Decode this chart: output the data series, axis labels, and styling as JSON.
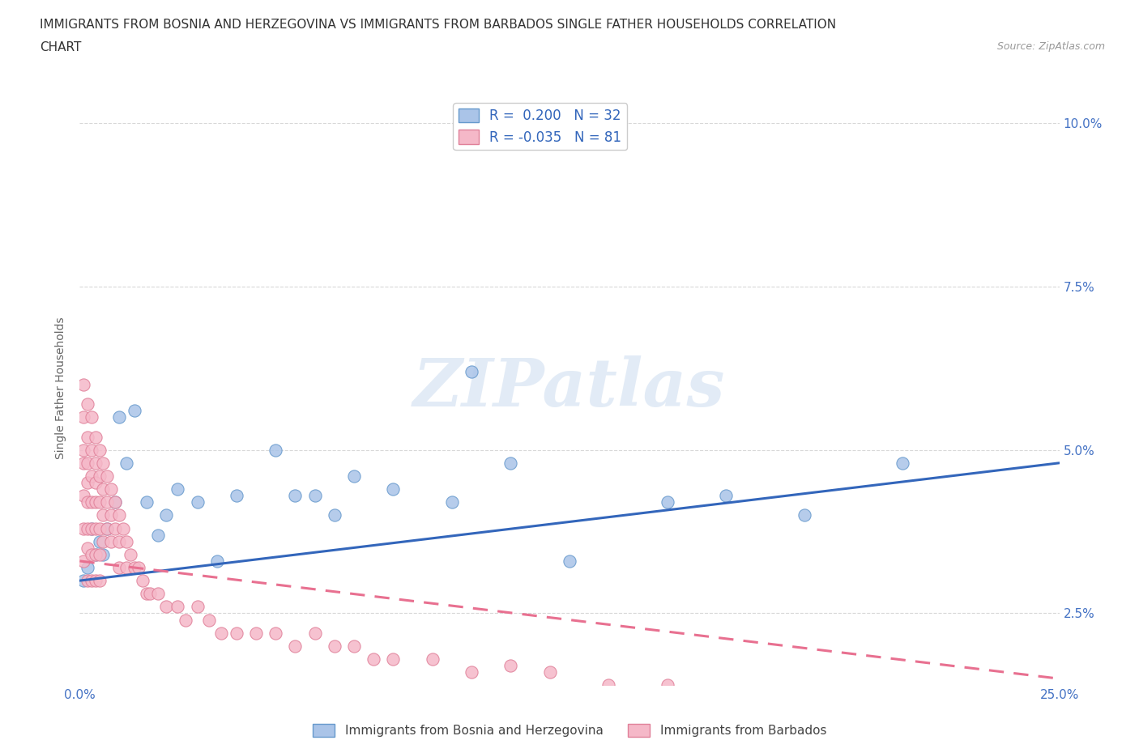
{
  "title_line1": "IMMIGRANTS FROM BOSNIA AND HERZEGOVINA VS IMMIGRANTS FROM BARBADOS SINGLE FATHER HOUSEHOLDS CORRELATION",
  "title_line2": "CHART",
  "source": "Source: ZipAtlas.com",
  "ylabel": "Single Father Households",
  "watermark": "ZIPatlas",
  "legend_entry1": "R =  0.200   N = 32",
  "legend_entry2": "R = -0.035   N = 81",
  "xlim": [
    0.0,
    0.25
  ],
  "ylim": [
    0.014,
    0.105
  ],
  "xticks": [
    0.0,
    0.05,
    0.1,
    0.15,
    0.2,
    0.25
  ],
  "yticks": [
    0.025,
    0.05,
    0.075,
    0.1
  ],
  "xticklabels": [
    "0.0%",
    "",
    "",
    "",
    "",
    "25.0%"
  ],
  "yticklabels_right": [
    "2.5%",
    "5.0%",
    "7.5%",
    "10.0%"
  ],
  "blue_scatter_x": [
    0.001,
    0.002,
    0.003,
    0.004,
    0.005,
    0.006,
    0.007,
    0.009,
    0.01,
    0.012,
    0.014,
    0.017,
    0.02,
    0.022,
    0.025,
    0.03,
    0.035,
    0.04,
    0.05,
    0.055,
    0.06,
    0.065,
    0.07,
    0.08,
    0.095,
    0.1,
    0.11,
    0.125,
    0.15,
    0.165,
    0.185,
    0.21
  ],
  "blue_scatter_y": [
    0.03,
    0.032,
    0.038,
    0.034,
    0.036,
    0.034,
    0.038,
    0.042,
    0.055,
    0.048,
    0.056,
    0.042,
    0.037,
    0.04,
    0.044,
    0.042,
    0.033,
    0.043,
    0.05,
    0.043,
    0.043,
    0.04,
    0.046,
    0.044,
    0.042,
    0.062,
    0.048,
    0.033,
    0.042,
    0.043,
    0.04,
    0.048
  ],
  "pink_scatter_x": [
    0.001,
    0.001,
    0.001,
    0.001,
    0.001,
    0.001,
    0.001,
    0.002,
    0.002,
    0.002,
    0.002,
    0.002,
    0.002,
    0.002,
    0.002,
    0.003,
    0.003,
    0.003,
    0.003,
    0.003,
    0.003,
    0.003,
    0.004,
    0.004,
    0.004,
    0.004,
    0.004,
    0.004,
    0.004,
    0.005,
    0.005,
    0.005,
    0.005,
    0.005,
    0.005,
    0.006,
    0.006,
    0.006,
    0.006,
    0.007,
    0.007,
    0.007,
    0.008,
    0.008,
    0.008,
    0.009,
    0.009,
    0.01,
    0.01,
    0.01,
    0.011,
    0.012,
    0.012,
    0.013,
    0.014,
    0.015,
    0.016,
    0.017,
    0.018,
    0.02,
    0.022,
    0.025,
    0.027,
    0.03,
    0.033,
    0.036,
    0.04,
    0.045,
    0.05,
    0.055,
    0.06,
    0.065,
    0.07,
    0.075,
    0.08,
    0.09,
    0.1,
    0.11,
    0.12,
    0.135,
    0.15
  ],
  "pink_scatter_y": [
    0.06,
    0.055,
    0.05,
    0.048,
    0.043,
    0.038,
    0.033,
    0.057,
    0.052,
    0.048,
    0.045,
    0.042,
    0.038,
    0.035,
    0.03,
    0.055,
    0.05,
    0.046,
    0.042,
    0.038,
    0.034,
    0.03,
    0.052,
    0.048,
    0.045,
    0.042,
    0.038,
    0.034,
    0.03,
    0.05,
    0.046,
    0.042,
    0.038,
    0.034,
    0.03,
    0.048,
    0.044,
    0.04,
    0.036,
    0.046,
    0.042,
    0.038,
    0.044,
    0.04,
    0.036,
    0.042,
    0.038,
    0.04,
    0.036,
    0.032,
    0.038,
    0.036,
    0.032,
    0.034,
    0.032,
    0.032,
    0.03,
    0.028,
    0.028,
    0.028,
    0.026,
    0.026,
    0.024,
    0.026,
    0.024,
    0.022,
    0.022,
    0.022,
    0.022,
    0.02,
    0.022,
    0.02,
    0.02,
    0.018,
    0.018,
    0.018,
    0.016,
    0.017,
    0.016,
    0.014,
    0.014
  ],
  "blue_line_x": [
    0.0,
    0.25
  ],
  "blue_line_y_start": 0.03,
  "blue_line_y_end": 0.048,
  "pink_line_x": [
    0.0,
    0.25
  ],
  "pink_line_y_start": 0.033,
  "pink_line_y_end": 0.015,
  "bg_color": "#ffffff",
  "grid_color": "#d8d8d8",
  "blue_scatter_color": "#aac4e8",
  "blue_scatter_edge": "#6699cc",
  "pink_scatter_color": "#f5b8c8",
  "pink_scatter_edge": "#e08099",
  "blue_line_color": "#3366bb",
  "pink_line_color": "#e87090",
  "axis_tick_color": "#4472c4",
  "axis_label_color": "#666666",
  "title_color": "#333333",
  "source_color": "#999999"
}
